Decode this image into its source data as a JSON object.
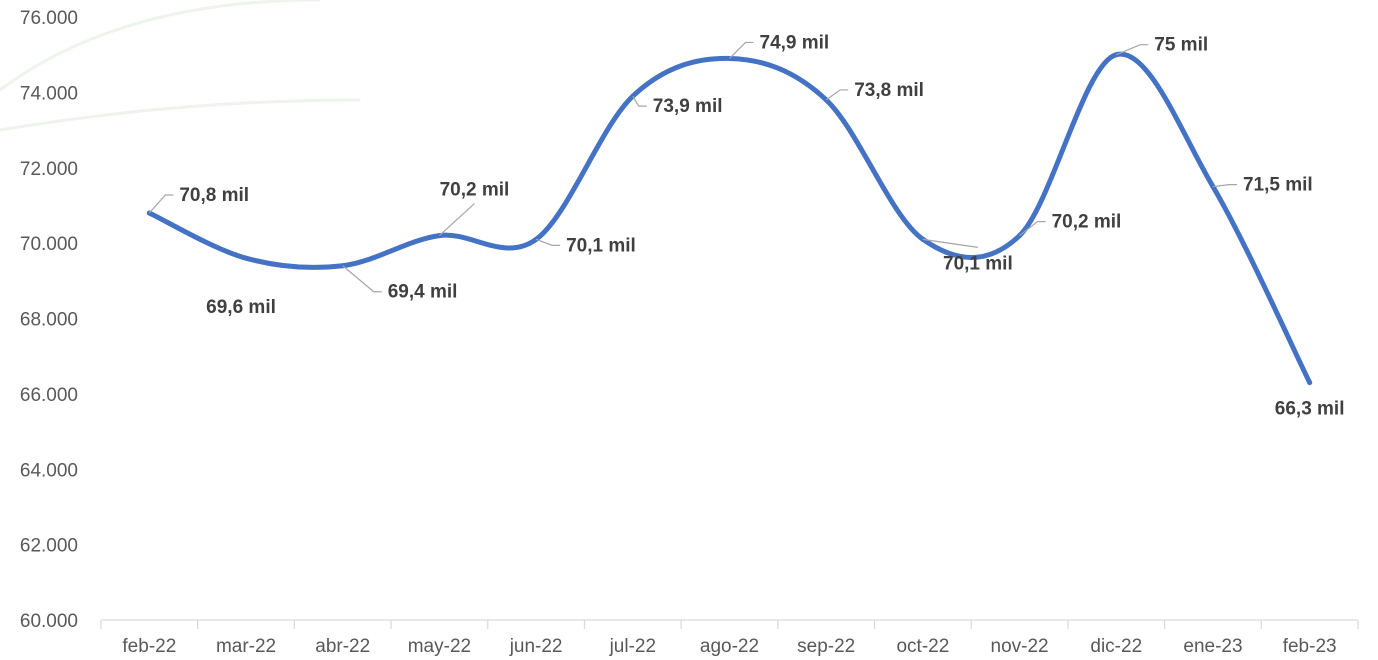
{
  "chart_data": {
    "type": "line",
    "title": "",
    "xlabel": "",
    "ylabel": "",
    "categories": [
      "feb-22",
      "mar-22",
      "abr-22",
      "may-22",
      "jun-22",
      "jul-22",
      "ago-22",
      "sep-22",
      "oct-22",
      "nov-22",
      "dic-22",
      "ene-23",
      "feb-23"
    ],
    "series": [
      {
        "color": "#4472c4",
        "values": [
          70800,
          69600,
          69400,
          70200,
          70100,
          73900,
          74900,
          73800,
          70100,
          70200,
          75000,
          71500,
          66300
        ],
        "data_labels": [
          "70,8 mil",
          "69,6 mil",
          "69,4 mil",
          "70,2 mil",
          "70,1 mil",
          "73,9 mil",
          "74,9 mil",
          "73,8 mil",
          "70,1 mil",
          "70,2 mil",
          "75 mil",
          "71,5 mil",
          "66,3 mil"
        ]
      }
    ],
    "ylim": [
      60000,
      76000
    ],
    "yticks": [
      60000,
      62000,
      64000,
      66000,
      68000,
      70000,
      72000,
      74000,
      76000
    ],
    "ytick_labels": [
      "60.000",
      "62.000",
      "64.000",
      "66.000",
      "68.000",
      "70.000",
      "72.000",
      "74.000",
      "76.000"
    ],
    "grid": false,
    "legend": "none",
    "smooth": true
  }
}
